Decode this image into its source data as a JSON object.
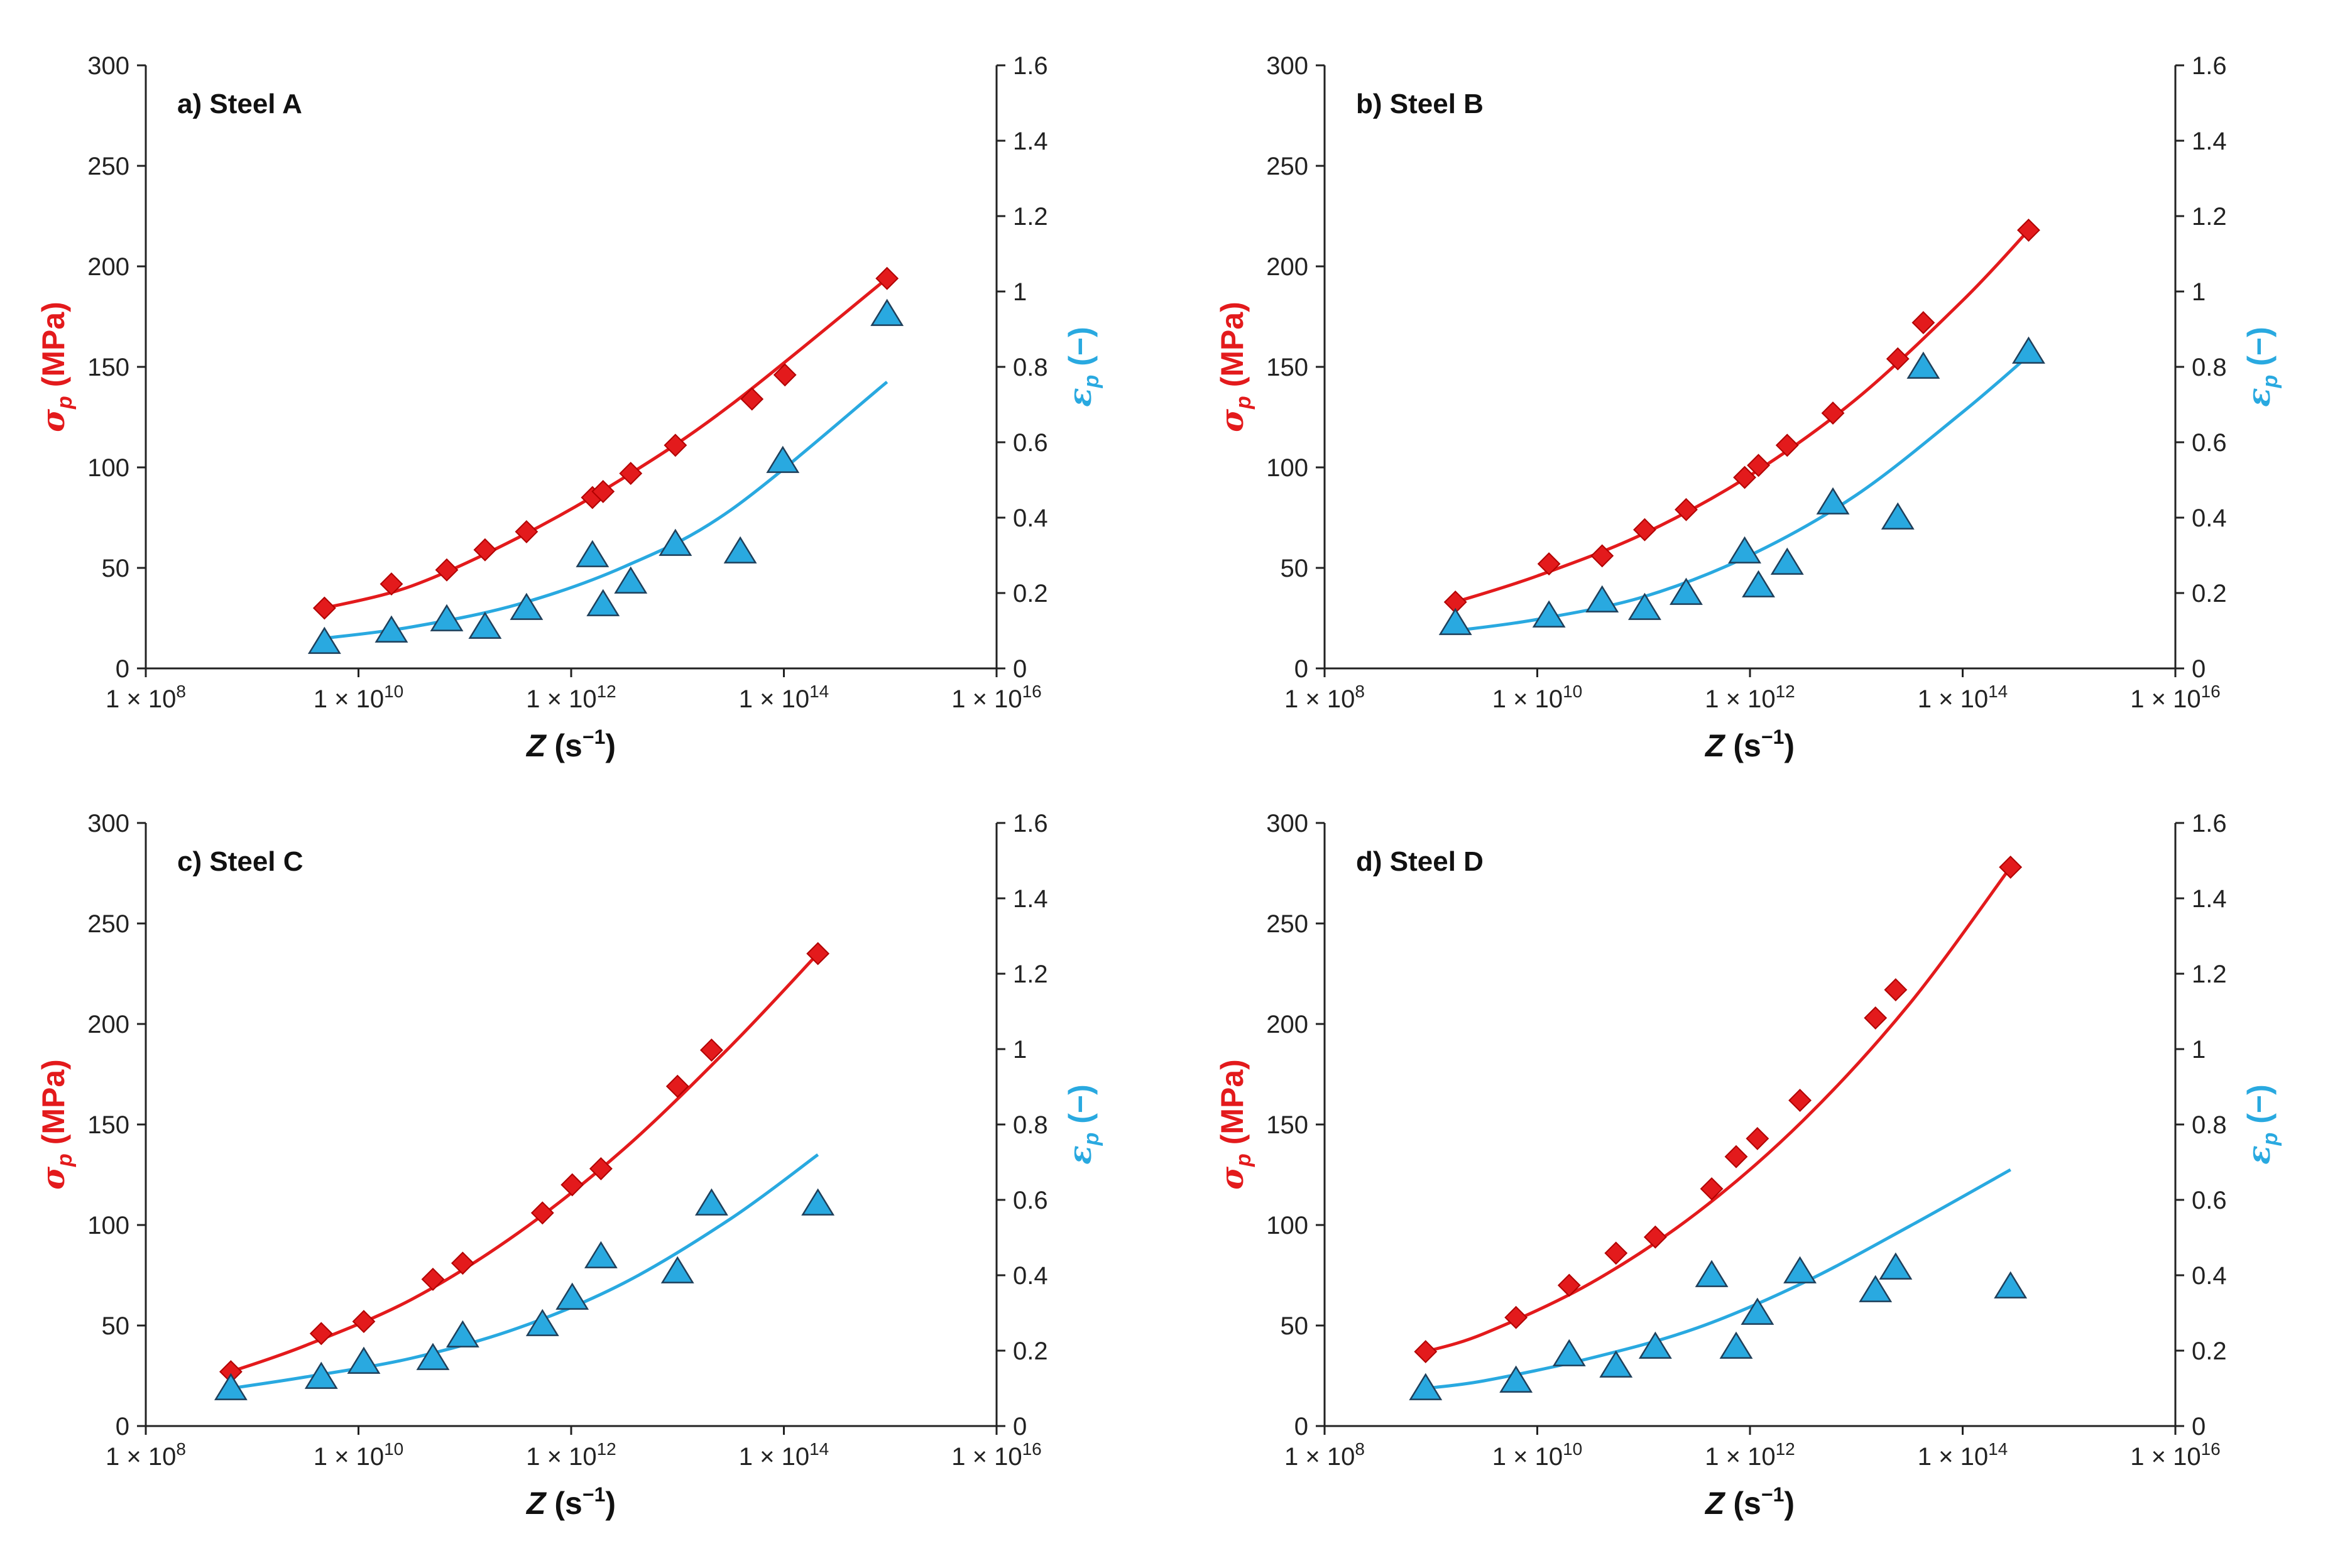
{
  "colors": {
    "stress": "#e31a1c",
    "strain": "#29a9e0",
    "axis": "#222222",
    "marker_edge": "#1f3f5a"
  },
  "y_left_label": {
    "sym": "σ",
    "sub": "p",
    "unit": " (MPa)"
  },
  "y_right_label": {
    "sym": "ε",
    "sub": "p",
    "unit": " (−)"
  },
  "x_label": {
    "sym": "Z",
    "unit": " (s",
    "sup": "−1",
    "close": ")"
  },
  "x_ticks": [
    {
      "exp": 8,
      "base": "1 × 10",
      "sup": "8"
    },
    {
      "exp": 10,
      "base": "1 × 10",
      "sup": "10"
    },
    {
      "exp": 12,
      "base": "1 × 10",
      "sup": "12"
    },
    {
      "exp": 14,
      "base": "1 × 10",
      "sup": "14"
    },
    {
      "exp": 16,
      "base": "1 × 10",
      "sup": "16"
    }
  ],
  "y_left_ticks": [
    "0",
    "50",
    "100",
    "150",
    "200",
    "250",
    "300"
  ],
  "y_right_ticks": [
    "0",
    "0.2",
    "0.4",
    "0.6",
    "0.8",
    "1",
    "1.2",
    "1.4",
    "1.6"
  ],
  "chart_data": [
    {
      "type": "scatter",
      "title": "a) Steel A",
      "xlabel": "Z (s−1)",
      "ylabel": "σp (MPa)",
      "y2label": "εp (−)",
      "xscale": "log",
      "xlim": [
        100000000.0,
        1e+16
      ],
      "ylim": [
        0,
        300
      ],
      "y2lim": [
        0,
        1.6
      ],
      "grid": false,
      "series": [
        {
          "axis": "left",
          "marker": "diamond",
          "color": "#e31a1c",
          "log10_x": [
            9.68,
            10.31,
            10.83,
            11.19,
            11.58,
            12.2,
            12.3,
            12.56,
            12.98,
            13.7,
            14.01,
            14.97
          ],
          "values": [
            30,
            42,
            49,
            59,
            68,
            85,
            88,
            97,
            111,
            134,
            146,
            194
          ]
        },
        {
          "axis": "right",
          "marker": "triangle",
          "color": "#29a9e0",
          "log10_x": [
            9.68,
            10.31,
            10.83,
            11.19,
            11.58,
            12.2,
            12.3,
            12.56,
            12.98,
            13.59,
            13.99,
            14.97
          ],
          "values": [
            0.07,
            0.1,
            0.13,
            0.11,
            0.16,
            0.3,
            0.17,
            0.23,
            0.33,
            0.31,
            0.55,
            0.94
          ]
        },
        {
          "axis": "left",
          "type": "line",
          "color": "#e31a1c",
          "log10_x": [
            9.68,
            10.5,
            11.5,
            12.5,
            13.5,
            14.97
          ],
          "values": [
            30,
            41,
            65,
            95,
            131,
            194
          ]
        },
        {
          "axis": "right",
          "type": "line",
          "color": "#29a9e0",
          "log10_x": [
            9.68,
            10.5,
            11.5,
            12.5,
            13.5,
            14.97
          ],
          "values": [
            0.08,
            0.11,
            0.17,
            0.27,
            0.42,
            0.76
          ]
        }
      ]
    },
    {
      "type": "scatter",
      "title": "b) Steel B",
      "xlabel": "Z (s−1)",
      "ylabel": "σp (MPa)",
      "y2label": "εp (−)",
      "xscale": "log",
      "xlim": [
        100000000.0,
        1e+16
      ],
      "ylim": [
        0,
        300
      ],
      "y2lim": [
        0,
        1.6
      ],
      "grid": false,
      "series": [
        {
          "axis": "left",
          "marker": "diamond",
          "color": "#e31a1c",
          "log10_x": [
            9.23,
            10.11,
            10.61,
            11.01,
            11.4,
            11.95,
            12.08,
            12.35,
            12.78,
            13.39,
            13.63,
            14.62
          ],
          "values": [
            33,
            52,
            56,
            69,
            79,
            95,
            101,
            111,
            127,
            154,
            172,
            218
          ]
        },
        {
          "axis": "right",
          "marker": "triangle",
          "color": "#29a9e0",
          "log10_x": [
            9.23,
            10.11,
            10.61,
            11.01,
            11.4,
            11.95,
            12.08,
            12.35,
            12.78,
            13.39,
            13.63,
            14.62
          ],
          "values": [
            0.12,
            0.14,
            0.18,
            0.16,
            0.2,
            0.31,
            0.22,
            0.28,
            0.44,
            0.4,
            0.8,
            0.84
          ]
        },
        {
          "axis": "left",
          "type": "line",
          "color": "#e31a1c",
          "log10_x": [
            9.23,
            10.0,
            11.0,
            12.0,
            13.0,
            14.0,
            14.62
          ],
          "values": [
            33,
            46,
            67,
            96,
            134,
            183,
            218
          ]
        },
        {
          "axis": "right",
          "type": "line",
          "color": "#29a9e0",
          "log10_x": [
            9.23,
            10.0,
            11.0,
            12.0,
            13.0,
            14.0,
            14.62
          ],
          "values": [
            0.1,
            0.13,
            0.19,
            0.3,
            0.46,
            0.68,
            0.83
          ]
        }
      ]
    },
    {
      "type": "scatter",
      "title": "c) Steel C",
      "xlabel": "Z (s−1)",
      "ylabel": "σp (MPa)",
      "y2label": "εp (−)",
      "xscale": "log",
      "xlim": [
        100000000.0,
        1e+16
      ],
      "ylim": [
        0,
        300
      ],
      "y2lim": [
        0,
        1.6
      ],
      "grid": false,
      "series": [
        {
          "axis": "left",
          "marker": "diamond",
          "color": "#e31a1c",
          "log10_x": [
            8.8,
            9.65,
            10.05,
            10.7,
            10.98,
            11.73,
            12.01,
            12.28,
            13.0,
            13.32,
            14.32
          ],
          "values": [
            27,
            46,
            52,
            73,
            81,
            106,
            120,
            128,
            169,
            187,
            235
          ]
        },
        {
          "axis": "right",
          "marker": "triangle",
          "color": "#29a9e0",
          "log10_x": [
            8.8,
            9.65,
            10.05,
            10.7,
            10.98,
            11.73,
            12.01,
            12.28,
            13.0,
            13.32,
            14.32
          ],
          "values": [
            0.1,
            0.13,
            0.17,
            0.18,
            0.24,
            0.27,
            0.34,
            0.45,
            0.41,
            0.59,
            0.59
          ]
        },
        {
          "axis": "left",
          "type": "line",
          "color": "#e31a1c",
          "log10_x": [
            8.8,
            9.5,
            10.5,
            11.5,
            12.5,
            13.5,
            14.32
          ],
          "values": [
            27,
            40,
            63,
            96,
            138,
            189,
            235
          ]
        },
        {
          "axis": "right",
          "type": "line",
          "color": "#29a9e0",
          "log10_x": [
            8.8,
            9.5,
            10.5,
            11.5,
            12.5,
            13.5,
            14.32
          ],
          "values": [
            0.1,
            0.13,
            0.18,
            0.26,
            0.38,
            0.55,
            0.72
          ]
        }
      ]
    },
    {
      "type": "scatter",
      "title": "d) Steel D",
      "xlabel": "Z (s−1)",
      "ylabel": "σp (MPa)",
      "y2label": "εp (−)",
      "xscale": "log",
      "xlim": [
        100000000.0,
        1e+16
      ],
      "ylim": [
        0,
        300
      ],
      "y2lim": [
        0,
        1.6
      ],
      "grid": false,
      "series": [
        {
          "axis": "left",
          "marker": "diamond",
          "color": "#e31a1c",
          "log10_x": [
            8.95,
            9.8,
            10.3,
            10.74,
            11.11,
            11.64,
            11.87,
            12.07,
            12.47,
            13.18,
            13.37,
            14.45
          ],
          "values": [
            37,
            54,
            70,
            86,
            94,
            118,
            134,
            143,
            162,
            203,
            217,
            278
          ]
        },
        {
          "axis": "right",
          "marker": "triangle",
          "color": "#29a9e0",
          "log10_x": [
            8.95,
            9.8,
            10.3,
            10.74,
            11.11,
            11.64,
            11.87,
            12.07,
            12.47,
            13.18,
            13.37,
            14.45
          ],
          "values": [
            0.1,
            0.12,
            0.19,
            0.16,
            0.21,
            0.4,
            0.21,
            0.3,
            0.41,
            0.36,
            0.42,
            0.37
          ]
        },
        {
          "axis": "left",
          "type": "line",
          "color": "#e31a1c",
          "log10_x": [
            8.95,
            9.5,
            10.5,
            11.5,
            12.5,
            13.5,
            14.45
          ],
          "values": [
            37,
            46,
            71,
            106,
            152,
            210,
            278
          ]
        },
        {
          "axis": "right",
          "type": "line",
          "color": "#29a9e0",
          "log10_x": [
            8.95,
            9.5,
            10.5,
            11.5,
            12.5,
            13.5,
            14.45
          ],
          "values": [
            0.1,
            0.12,
            0.18,
            0.26,
            0.38,
            0.53,
            0.68
          ]
        }
      ]
    }
  ]
}
